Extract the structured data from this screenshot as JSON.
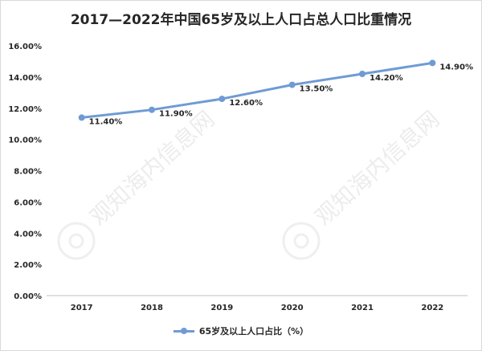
{
  "chart_data": {
    "type": "line",
    "title": "2017—2022年中国65岁及以上人口占总人口比重情况",
    "categories": [
      "2017",
      "2018",
      "2019",
      "2020",
      "2021",
      "2022"
    ],
    "series": [
      {
        "name": "65岁及以上人口占比（%）",
        "values": [
          11.4,
          11.9,
          12.6,
          13.5,
          14.2,
          14.9
        ],
        "labels": [
          "11.40%",
          "11.90%",
          "12.60%",
          "13.50%",
          "14.20%",
          "14.90%"
        ]
      }
    ],
    "ylim": [
      0,
      16
    ],
    "yticks": [
      "0.00%",
      "2.00%",
      "4.00%",
      "6.00%",
      "8.00%",
      "10.00%",
      "12.00%",
      "14.00%",
      "16.00%"
    ],
    "xlabel": "",
    "ylabel": "",
    "grid": false,
    "legend_position": "bottom",
    "line_color": "#6f9bd4",
    "watermark_text": "观知海内信息网"
  }
}
